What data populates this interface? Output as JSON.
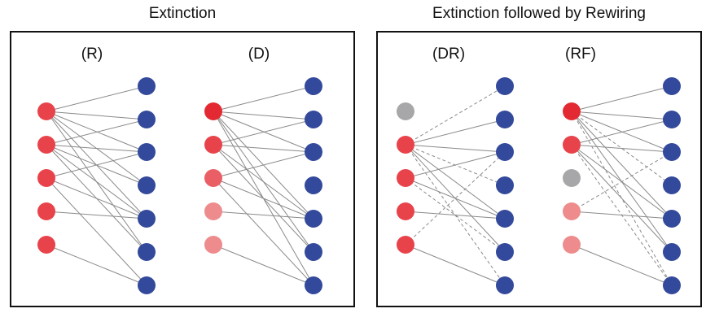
{
  "panels": {
    "left_title": "Extinction",
    "right_title": "Extinction followed by Rewiring"
  },
  "networks": [
    {
      "label": "(R)",
      "left_colors": [
        "red",
        "red",
        "red",
        "red",
        "red"
      ],
      "solid": [
        [
          0,
          0
        ],
        [
          0,
          1
        ],
        [
          0,
          2
        ],
        [
          0,
          3
        ],
        [
          0,
          4
        ],
        [
          0,
          5
        ],
        [
          1,
          1
        ],
        [
          1,
          2
        ],
        [
          1,
          4
        ],
        [
          1,
          5
        ],
        [
          2,
          2
        ],
        [
          2,
          4
        ],
        [
          2,
          6
        ],
        [
          1,
          3
        ],
        [
          3,
          4
        ],
        [
          4,
          6
        ]
      ],
      "dashed": []
    },
    {
      "label": "(D)",
      "left_colors": [
        "red_dark",
        "red",
        "red_mid",
        "pink",
        "pink"
      ],
      "solid": [
        [
          0,
          0
        ],
        [
          0,
          1
        ],
        [
          0,
          2
        ],
        [
          0,
          4
        ],
        [
          0,
          5
        ],
        [
          0,
          6
        ],
        [
          1,
          1
        ],
        [
          1,
          2
        ],
        [
          1,
          4
        ],
        [
          1,
          5
        ],
        [
          2,
          2
        ],
        [
          2,
          4
        ],
        [
          2,
          6
        ],
        [
          3,
          4
        ],
        [
          4,
          6
        ]
      ],
      "dashed": []
    },
    {
      "label": "(DR)",
      "left_colors": [
        "gray",
        "red",
        "red",
        "red",
        "red"
      ],
      "solid": [
        [
          1,
          1
        ],
        [
          1,
          2
        ],
        [
          1,
          4
        ],
        [
          1,
          5
        ],
        [
          2,
          2
        ],
        [
          2,
          4
        ],
        [
          3,
          4
        ],
        [
          4,
          6
        ]
      ],
      "dashed": [
        [
          1,
          0
        ],
        [
          1,
          6
        ],
        [
          4,
          2
        ],
        [
          1,
          3
        ],
        [
          2,
          5
        ]
      ]
    },
    {
      "label": "(RF)",
      "left_colors": [
        "red_dark",
        "red",
        "gray",
        "pink",
        "pink"
      ],
      "solid": [
        [
          0,
          0
        ],
        [
          0,
          1
        ],
        [
          0,
          2
        ],
        [
          0,
          5
        ],
        [
          1,
          1
        ],
        [
          1,
          2
        ],
        [
          0,
          4
        ],
        [
          1,
          4
        ],
        [
          3,
          4
        ],
        [
          4,
          6
        ],
        [
          1,
          5
        ]
      ],
      "dashed": [
        [
          0,
          3
        ],
        [
          0,
          6
        ],
        [
          1,
          6
        ],
        [
          3,
          2
        ]
      ]
    }
  ],
  "colors": {
    "red": "#e8434a",
    "red_dark": "#e32a33",
    "red_mid": "#ea5f65",
    "pink": "#ee8b8c",
    "gray": "#a7a7a9",
    "blue": "#33499b",
    "edge": "#8a8a8a"
  }
}
